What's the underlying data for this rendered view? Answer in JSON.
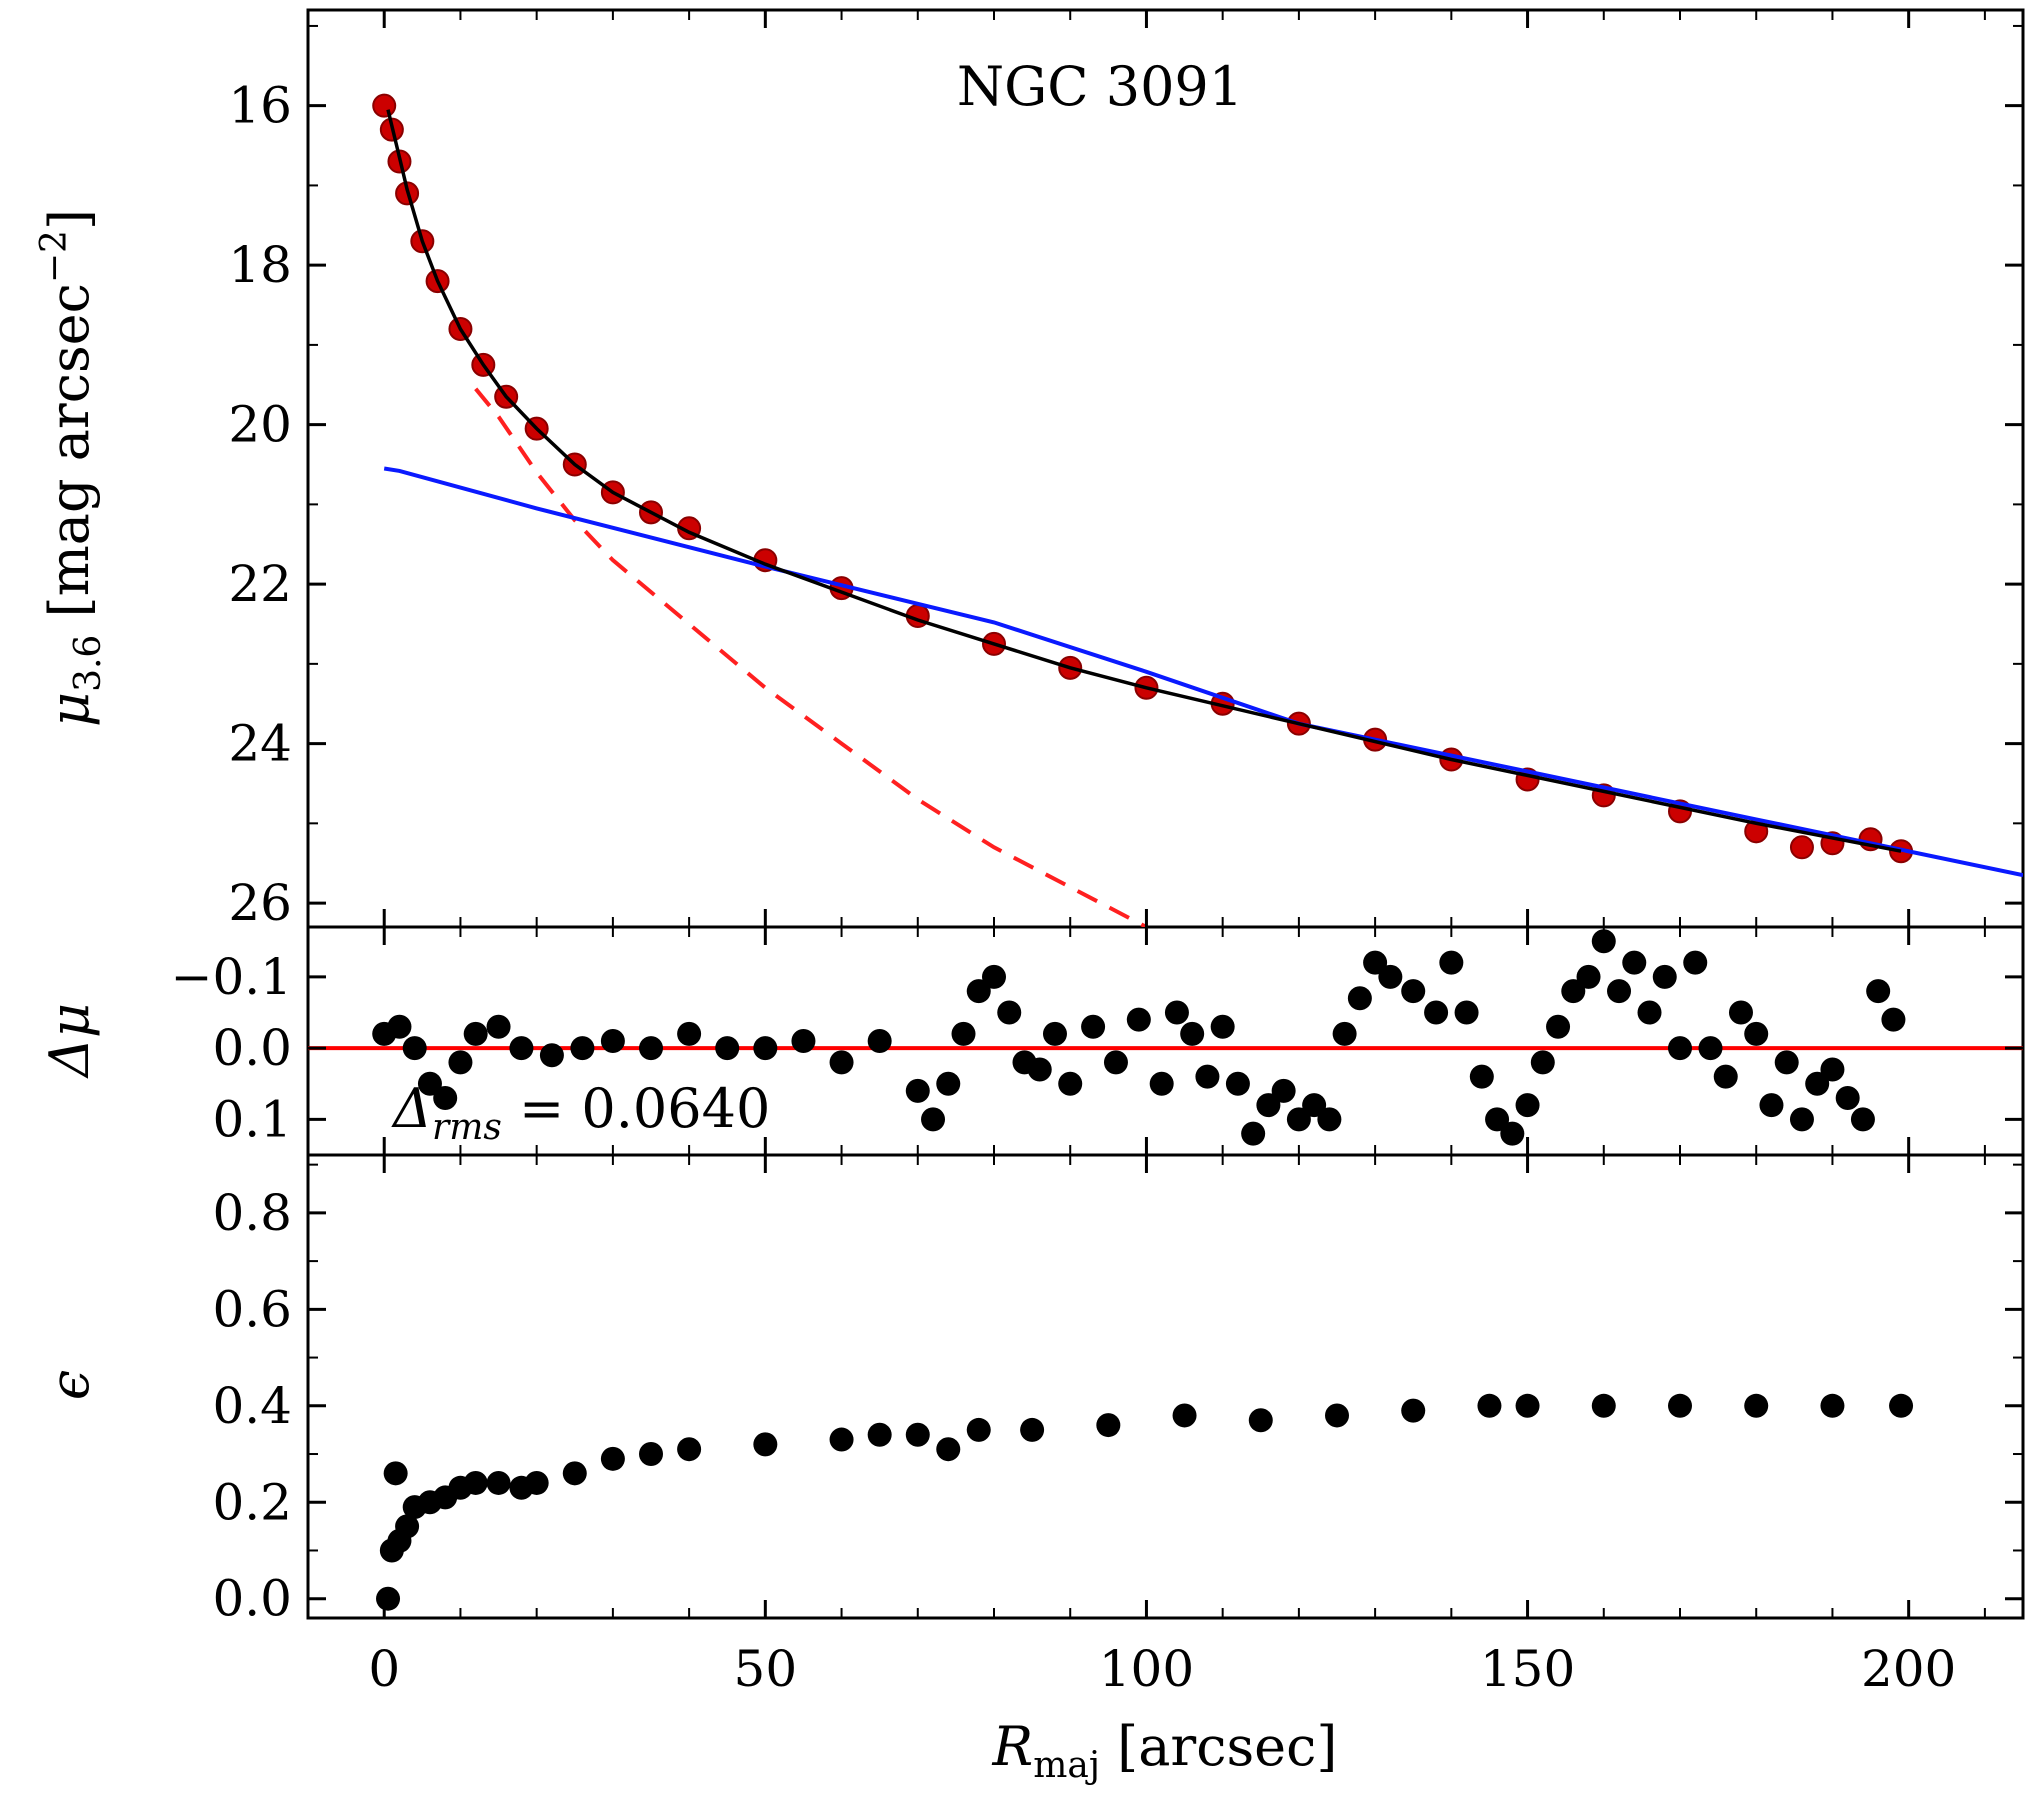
{
  "chart_data": [
    {
      "panel": "profile",
      "type": "scatter",
      "title": "NGC 3091",
      "ylabel": "μ3.6 [mag arcsec−2]",
      "ylabel_parts": {
        "symbol": "μ",
        "subscript": "3.6",
        "unit_open": " [mag arcsec",
        "sup": "−2",
        "unit_close": "]"
      },
      "xlim": [
        -10,
        215
      ],
      "ylim": [
        26.3,
        14.8
      ],
      "y_inverted": true,
      "yticks": [
        16,
        18,
        20,
        22,
        24,
        26
      ],
      "ytick_labels": [
        "16",
        "18",
        "20",
        "22",
        "24",
        "26"
      ],
      "observed": {
        "name": "observed profile",
        "color": "#cc0000",
        "x": [
          0,
          1,
          2,
          3,
          5,
          7,
          10,
          13,
          16,
          20,
          25,
          30,
          35,
          40,
          50,
          60,
          70,
          80,
          90,
          100,
          110,
          120,
          130,
          140,
          150,
          160,
          170,
          180,
          186,
          190,
          195,
          199
        ],
        "y": [
          16.0,
          16.3,
          16.7,
          17.1,
          17.7,
          18.2,
          18.8,
          19.25,
          19.65,
          20.05,
          20.5,
          20.85,
          21.1,
          21.3,
          21.7,
          22.05,
          22.4,
          22.75,
          23.05,
          23.3,
          23.5,
          23.75,
          23.95,
          24.2,
          24.45,
          24.65,
          24.85,
          25.1,
          25.3,
          25.25,
          25.2,
          25.35
        ]
      },
      "model_total": {
        "name": "total model",
        "color": "#000000",
        "x": [
          0.5,
          1,
          2,
          3,
          5,
          7,
          10,
          13,
          16,
          20,
          25,
          30,
          40,
          50,
          60,
          70,
          80,
          90,
          100,
          120,
          140,
          160,
          180,
          199
        ],
        "y": [
          16.05,
          16.25,
          16.65,
          17.05,
          17.7,
          18.2,
          18.8,
          19.25,
          19.65,
          20.05,
          20.5,
          20.85,
          21.35,
          21.75,
          22.1,
          22.45,
          22.75,
          23.05,
          23.3,
          23.75,
          24.2,
          24.6,
          25.0,
          25.35
        ]
      },
      "bulge": {
        "name": "bulge component",
        "color": "#ff2020",
        "style": "dashed",
        "x": [
          12,
          15,
          20,
          25,
          30,
          40,
          50,
          60,
          70,
          80,
          90,
          100
        ],
        "y": [
          19.55,
          19.9,
          20.6,
          21.2,
          21.7,
          22.5,
          23.3,
          24.0,
          24.7,
          25.3,
          25.8,
          26.3
        ]
      },
      "disk": {
        "name": "disk component",
        "color": "#0a1aff",
        "style": "solid",
        "x": [
          0,
          2,
          20,
          50,
          80,
          100,
          120,
          150,
          180,
          215
        ],
        "y": [
          20.55,
          20.58,
          21.05,
          21.78,
          22.48,
          23.1,
          23.75,
          24.35,
          24.95,
          25.65
        ]
      }
    },
    {
      "panel": "residuals",
      "type": "scatter",
      "ylabel": "Δμ",
      "ylim": [
        0.15,
        -0.17
      ],
      "y_inverted": true,
      "yticks": [
        -0.1,
        0.0,
        0.1
      ],
      "ytick_labels": [
        "−0.1",
        "0.0",
        "0.1"
      ],
      "zero_line_color": "#ff0000",
      "annotation": {
        "main": "Δ",
        "sub": "rms",
        "rest": " = 0.0640"
      },
      "x": [
        0,
        2,
        4,
        6,
        8,
        10,
        12,
        15,
        18,
        22,
        26,
        30,
        35,
        40,
        45,
        50,
        55,
        60,
        65,
        70,
        72,
        74,
        76,
        78,
        80,
        82,
        84,
        86,
        88,
        90,
        93,
        96,
        99,
        102,
        104,
        106,
        108,
        110,
        112,
        114,
        116,
        118,
        120,
        122,
        124,
        126,
        128,
        130,
        132,
        135,
        138,
        140,
        142,
        144,
        146,
        148,
        150,
        152,
        154,
        156,
        158,
        160,
        162,
        164,
        166,
        168,
        170,
        172,
        174,
        176,
        178,
        180,
        182,
        184,
        186,
        188,
        190,
        192,
        194,
        196,
        198
      ],
      "y": [
        -0.02,
        -0.03,
        0.0,
        0.05,
        0.07,
        0.02,
        -0.02,
        -0.03,
        0.0,
        0.01,
        0.0,
        -0.01,
        0.0,
        -0.02,
        0.0,
        0.0,
        -0.01,
        0.02,
        -0.01,
        0.06,
        0.1,
        0.05,
        -0.02,
        -0.08,
        -0.1,
        -0.05,
        0.02,
        0.03,
        -0.02,
        0.05,
        -0.03,
        0.02,
        -0.04,
        0.05,
        -0.05,
        -0.02,
        0.04,
        -0.03,
        0.05,
        0.12,
        0.08,
        0.06,
        0.1,
        0.08,
        0.1,
        -0.02,
        -0.07,
        -0.12,
        -0.1,
        -0.08,
        -0.05,
        -0.12,
        -0.05,
        0.04,
        0.1,
        0.12,
        0.08,
        0.02,
        -0.03,
        -0.08,
        -0.1,
        -0.15,
        -0.08,
        -0.12,
        -0.05,
        -0.1,
        0.0,
        -0.12,
        0.0,
        0.04,
        -0.05,
        -0.02,
        0.08,
        0.02,
        0.1,
        0.05,
        0.03,
        0.07,
        0.1,
        -0.08,
        -0.04
      ]
    },
    {
      "panel": "ellipticity",
      "type": "scatter",
      "ylabel": "ϵ",
      "xlabel_parts": {
        "symbol": "R",
        "subscript": "maj",
        "unit": " [arcsec]"
      },
      "ylim": [
        -0.04,
        0.92
      ],
      "yticks": [
        0.0,
        0.2,
        0.4,
        0.6,
        0.8
      ],
      "ytick_labels": [
        "0.0",
        "0.2",
        "0.4",
        "0.6",
        "0.8"
      ],
      "xticks": [
        0,
        50,
        100,
        150,
        200
      ],
      "xtick_labels": [
        "0",
        "50",
        "100",
        "150",
        "200"
      ],
      "x": [
        0.5,
        1,
        1.5,
        2,
        3,
        4,
        6,
        8,
        10,
        12,
        15,
        18,
        20,
        25,
        30,
        35,
        40,
        50,
        60,
        65,
        70,
        74,
        78,
        85,
        95,
        105,
        115,
        125,
        135,
        145,
        150,
        160,
        170,
        180,
        190,
        199
      ],
      "y": [
        0.0,
        0.1,
        0.26,
        0.12,
        0.15,
        0.19,
        0.2,
        0.21,
        0.23,
        0.24,
        0.24,
        0.23,
        0.24,
        0.26,
        0.29,
        0.3,
        0.31,
        0.32,
        0.33,
        0.34,
        0.34,
        0.31,
        0.35,
        0.35,
        0.36,
        0.38,
        0.37,
        0.38,
        0.39,
        0.4,
        0.4,
        0.4,
        0.4,
        0.4,
        0.4,
        0.4
      ]
    }
  ]
}
